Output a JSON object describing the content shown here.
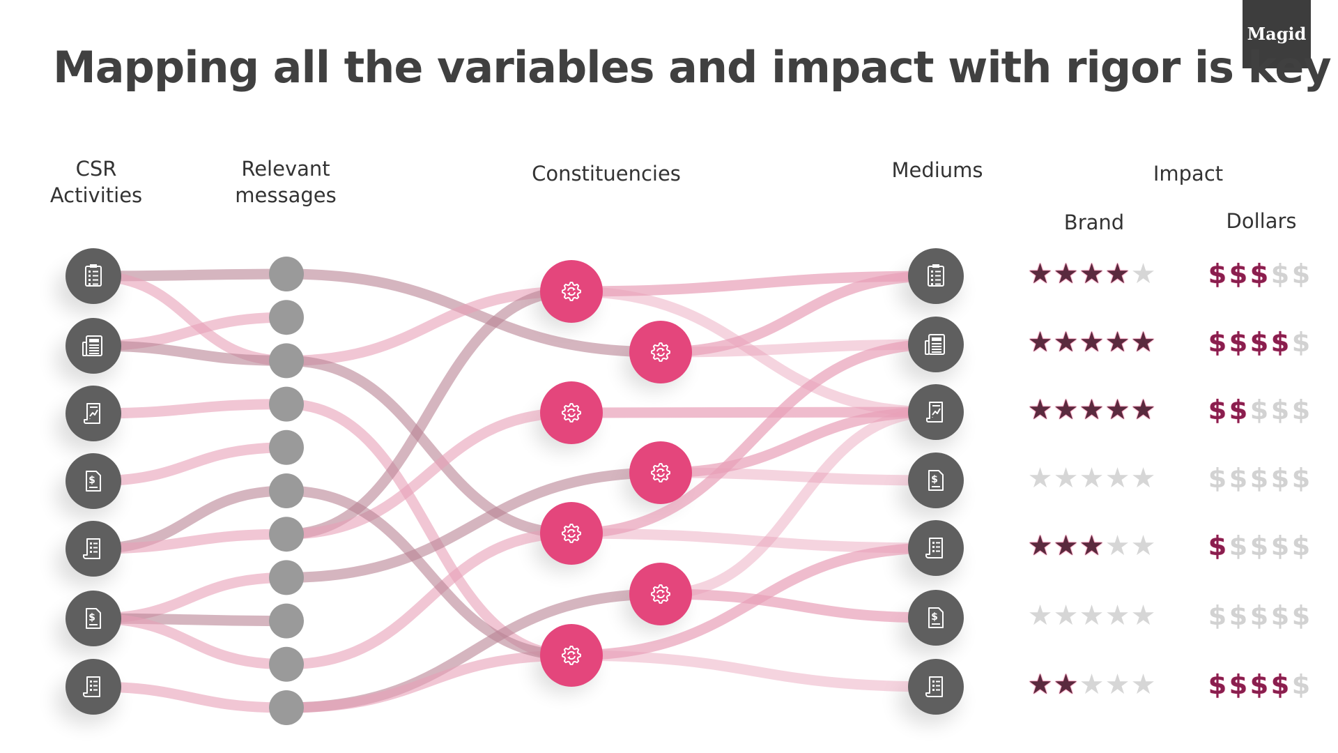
{
  "logo": "Magid",
  "title": "Mapping all the variables and impact with rigor is key",
  "columns": {
    "csr": "CSR\nActivities",
    "messages": "Relevant\nmessages",
    "constituencies": "Constituencies",
    "mediums": "Mediums",
    "impact": "Impact",
    "brand": "Brand",
    "dollars": "Dollars"
  },
  "colors": {
    "node_gray_dark": "#5f5f5f",
    "node_gray_light": "#9a9a9a",
    "node_pink": "#e4467c",
    "link_pink": "#e8a0b8",
    "link_mauve": "#b98494"
  },
  "csr_activities": [
    {
      "icon": "clipboard-checklist-icon"
    },
    {
      "icon": "newspaper-icon"
    },
    {
      "icon": "chart-report-icon"
    },
    {
      "icon": "invoice-icon"
    },
    {
      "icon": "receipt-icon"
    },
    {
      "icon": "invoice-icon"
    },
    {
      "icon": "receipt-icon"
    }
  ],
  "message_count": 11,
  "constituency_icon": "gear-cycle-icon",
  "mediums": [
    {
      "icon": "clipboard-checklist-icon"
    },
    {
      "icon": "newspaper-icon"
    },
    {
      "icon": "chart-report-icon"
    },
    {
      "icon": "invoice-icon"
    },
    {
      "icon": "receipt-icon"
    },
    {
      "icon": "invoice-icon"
    },
    {
      "icon": "receipt-icon"
    }
  ],
  "impact_rows": [
    {
      "brand_stars": 4,
      "dollars": 3
    },
    {
      "brand_stars": 5,
      "dollars": 4
    },
    {
      "brand_stars": 5,
      "dollars": 2
    },
    {
      "brand_stars": 0,
      "dollars": 0
    },
    {
      "brand_stars": 3,
      "dollars": 1
    },
    {
      "brand_stars": 0,
      "dollars": 0
    },
    {
      "brand_stars": 2,
      "dollars": 4
    }
  ],
  "rating_max": 5,
  "star_glyph": "★",
  "dollar_glyph": "$"
}
